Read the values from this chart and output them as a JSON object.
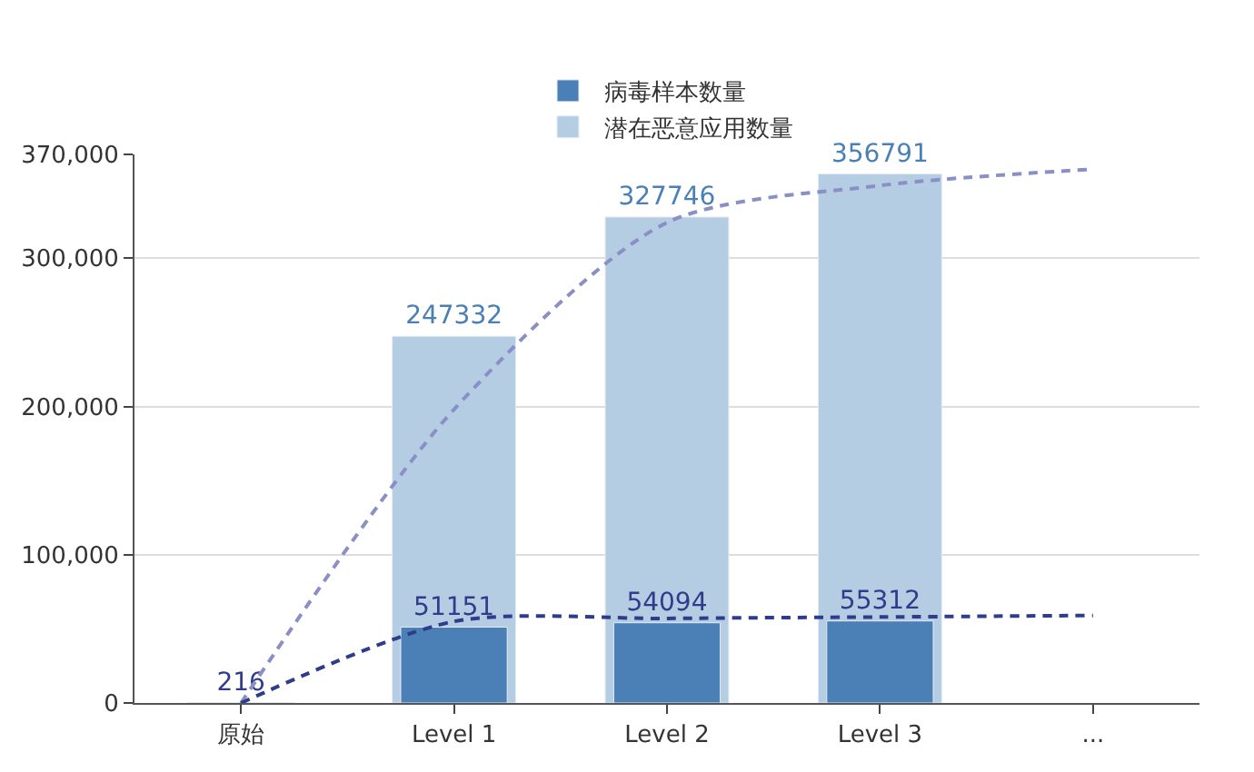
{
  "chart_data": {
    "type": "bar",
    "categories": [
      "原始",
      "Level 1",
      "Level 2",
      "Level 3",
      "..."
    ],
    "series": [
      {
        "name": "病毒样本数量",
        "color": "#4a80b6",
        "values": [
          216,
          51151,
          54094,
          55312,
          null
        ],
        "value_labels": [
          "216",
          "51151",
          "54094",
          "55312",
          null
        ]
      },
      {
        "name": "潜在恶意应用数量",
        "color": "#b5cde3",
        "values": [
          null,
          247332,
          327746,
          356791,
          null
        ],
        "value_labels": [
          null,
          "247332",
          "327746",
          "356791",
          null
        ]
      },
      {
        "type": "line",
        "color": "#8a8fc6",
        "line_style": "dashed",
        "marker": "none",
        "values": [
          0,
          198000,
          324000,
          349000,
          360000
        ]
      },
      {
        "type": "line",
        "color": "#2f3c8c",
        "line_style": "dashed",
        "marker": "none",
        "values": [
          0,
          55000,
          57000,
          58000,
          59000
        ]
      }
    ],
    "ylim": [
      0,
      370000
    ],
    "yticks": [
      {
        "value": 0,
        "label": "0"
      },
      {
        "value": 100000,
        "label": "100,000"
      },
      {
        "value": 200000,
        "label": "200,000"
      },
      {
        "value": 300000,
        "label": "300,000"
      },
      {
        "value": 370000,
        "label": "370,000"
      }
    ],
    "grid": "y",
    "legend": "top"
  }
}
